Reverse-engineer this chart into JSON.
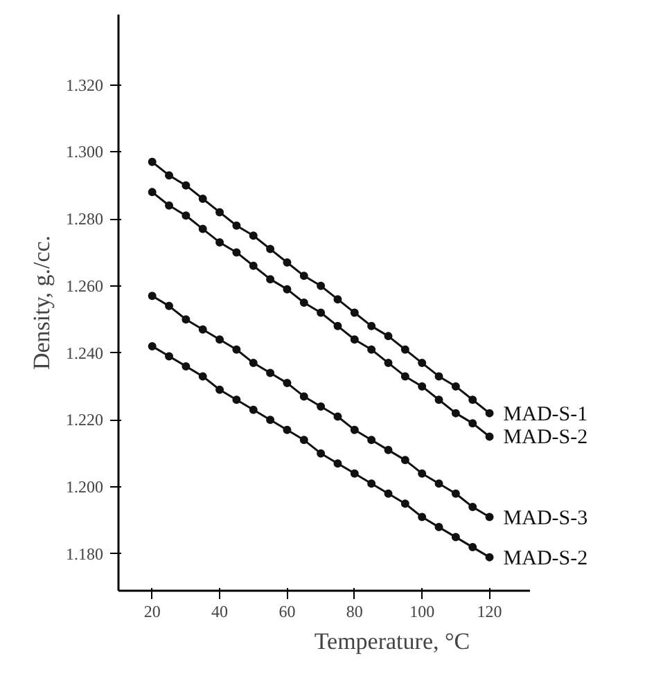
{
  "chart_data": {
    "type": "line",
    "xlabel": "Temperature, °C",
    "ylabel": "Density, g./cc.",
    "marker": "circle",
    "legend": false,
    "grid": false,
    "x": [
      20,
      25,
      30,
      35,
      40,
      45,
      50,
      55,
      60,
      65,
      70,
      75,
      80,
      85,
      90,
      95,
      100,
      105,
      110,
      115,
      120
    ],
    "xlim": [
      10,
      132
    ],
    "xticks": [
      20,
      40,
      60,
      80,
      100,
      120
    ],
    "ylim": [
      1.169,
      1.341
    ],
    "yticks": [
      {
        "value": 1.18,
        "label": "1.180"
      },
      {
        "value": 1.2,
        "label": "1.200"
      },
      {
        "value": 1.22,
        "label": "1.220"
      },
      {
        "value": 1.24,
        "label": "1.240"
      },
      {
        "value": 1.26,
        "label": "1.260"
      },
      {
        "value": 1.28,
        "label": "1.280"
      },
      {
        "value": 1.3,
        "label": "1.300"
      },
      {
        "value": 1.32,
        "label": "1.320"
      }
    ],
    "series": [
      {
        "name": "MAD-S-1",
        "color": "#111111",
        "values": [
          1.297,
          1.293,
          1.29,
          1.286,
          1.282,
          1.278,
          1.275,
          1.271,
          1.267,
          1.263,
          1.26,
          1.256,
          1.252,
          1.248,
          1.245,
          1.241,
          1.237,
          1.233,
          1.23,
          1.226,
          1.222
        ]
      },
      {
        "name": "MAD-S-2",
        "color": "#111111",
        "values": [
          1.288,
          1.284,
          1.281,
          1.277,
          1.273,
          1.27,
          1.266,
          1.262,
          1.259,
          1.255,
          1.252,
          1.248,
          1.244,
          1.241,
          1.237,
          1.233,
          1.23,
          1.226,
          1.222,
          1.219,
          1.215
        ]
      },
      {
        "name": "MAD-S-3",
        "color": "#111111",
        "values": [
          1.257,
          1.254,
          1.25,
          1.247,
          1.244,
          1.241,
          1.237,
          1.234,
          1.231,
          1.227,
          1.224,
          1.221,
          1.217,
          1.214,
          1.211,
          1.208,
          1.204,
          1.201,
          1.198,
          1.194,
          1.191
        ]
      },
      {
        "name": "MAD-S-2",
        "color": "#111111",
        "values": [
          1.242,
          1.239,
          1.236,
          1.233,
          1.229,
          1.226,
          1.223,
          1.22,
          1.217,
          1.214,
          1.21,
          1.207,
          1.204,
          1.201,
          1.198,
          1.195,
          1.191,
          1.188,
          1.185,
          1.182,
          1.179
        ]
      }
    ]
  }
}
